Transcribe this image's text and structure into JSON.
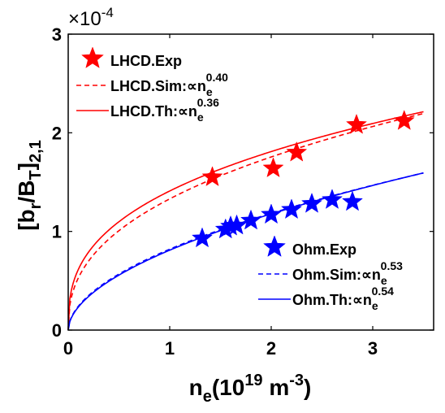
{
  "chart_data": {
    "type": "scatter",
    "xlabel": {
      "main": "n",
      "sub": "e",
      "rest": "(10",
      "sup": "19",
      "rest2": " m",
      "sup2": "-3",
      "close": ")"
    },
    "ylabel": {
      "open": "[b",
      "sub1": "r",
      "mid": "/B",
      "sub2": "T",
      "close": "]",
      "sub3": "2,1"
    },
    "y_multiplier": {
      "base": "×10",
      "exp": "-4"
    },
    "xlim": [
      0,
      3.6
    ],
    "ylim": [
      0,
      3
    ],
    "x_ticks": [
      "0",
      "1",
      "2",
      "3"
    ],
    "y_ticks": [
      "0",
      "1",
      "2",
      "3"
    ],
    "x_tick_values": [
      0,
      1,
      2,
      3
    ],
    "y_tick_values": [
      0,
      1,
      2,
      3
    ],
    "colors": {
      "lhcd": "#ff0000",
      "ohm": "#0000ff"
    },
    "series": [
      {
        "name": "LHCD.Exp",
        "kind": "markers",
        "marker": "star",
        "color": "#ff0000",
        "x": [
          1.42,
          2.02,
          2.25,
          2.84,
          3.31
        ],
        "y": [
          1.55,
          1.64,
          1.8,
          2.08,
          2.12
        ]
      },
      {
        "name": "LHCD.Sim",
        "kind": "line",
        "dash": true,
        "color": "#ff0000",
        "coef": 1.33,
        "exponent": 0.4,
        "offset": 0
      },
      {
        "name": "LHCD.Th",
        "kind": "line",
        "dash": false,
        "color": "#ff0000",
        "coef": 1.41,
        "exponent": 0.36,
        "offset": 0
      },
      {
        "name": "Ohm.Exp",
        "kind": "markers",
        "marker": "star",
        "color": "#0000ff",
        "x": [
          1.32,
          1.55,
          1.6,
          1.66,
          1.8,
          2.0,
          2.2,
          2.4,
          2.6,
          2.8
        ],
        "y": [
          0.93,
          1.02,
          1.05,
          1.06,
          1.11,
          1.17,
          1.22,
          1.28,
          1.32,
          1.3
        ]
      },
      {
        "name": "Ohm.Sim",
        "kind": "line",
        "dash": true,
        "color": "#0000ff",
        "coef": 0.82,
        "exponent": 0.53,
        "offset": 0
      },
      {
        "name": "Ohm.Th",
        "kind": "line",
        "dash": false,
        "color": "#0000ff",
        "coef": 0.81,
        "exponent": 0.54,
        "offset": 0
      }
    ],
    "legend_groups": [
      {
        "position": "top-left",
        "entries": [
          {
            "marker": "star",
            "color": "#ff0000",
            "text": "LHCD.Exp"
          },
          {
            "marker": "dash",
            "color": "#ff0000",
            "text": "LHCD.Sim:∝n",
            "sub": "e",
            "sup": "0.40"
          },
          {
            "marker": "solid",
            "color": "#ff0000",
            "text": "LHCD.Th:∝n",
            "sub": "e",
            "sup": "0.36"
          }
        ]
      },
      {
        "position": "bottom-right",
        "entries": [
          {
            "marker": "star",
            "color": "#0000ff",
            "text": "Ohm.Exp"
          },
          {
            "marker": "dash",
            "color": "#0000ff",
            "text": "Ohm.Sim:∝n",
            "sub": "e",
            "sup": "0.53"
          },
          {
            "marker": "solid",
            "color": "#0000ff",
            "text": "Ohm.Th:∝n",
            "sub": "e",
            "sup": "0.54"
          }
        ]
      }
    ]
  }
}
